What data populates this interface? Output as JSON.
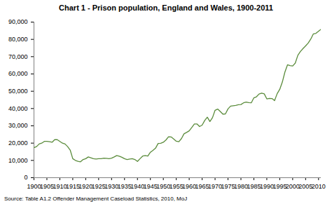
{
  "chart_data": {
    "type": "line",
    "title": "Chart 1 - Prison population, England and Wales, 1900-2011",
    "source": "Source: Table A1.2 Offender Management Caseload Statistics, 2010, MoJ",
    "color": "#5b8c3c",
    "grid": false,
    "x": [
      1900,
      1901,
      1902,
      1903,
      1904,
      1905,
      1906,
      1907,
      1908,
      1909,
      1910,
      1911,
      1912,
      1913,
      1914,
      1915,
      1916,
      1917,
      1918,
      1919,
      1920,
      1921,
      1922,
      1923,
      1924,
      1925,
      1926,
      1927,
      1928,
      1929,
      1930,
      1931,
      1932,
      1933,
      1934,
      1935,
      1936,
      1937,
      1938,
      1939,
      1940,
      1941,
      1942,
      1943,
      1944,
      1945,
      1946,
      1947,
      1948,
      1949,
      1950,
      1951,
      1952,
      1953,
      1954,
      1955,
      1956,
      1957,
      1958,
      1959,
      1960,
      1961,
      1962,
      1963,
      1964,
      1965,
      1966,
      1967,
      1968,
      1969,
      1970,
      1971,
      1972,
      1973,
      1974,
      1975,
      1976,
      1977,
      1978,
      1979,
      1980,
      1981,
      1982,
      1983,
      1984,
      1985,
      1986,
      1987,
      1988,
      1989,
      1990,
      1991,
      1992,
      1993,
      1994,
      1995,
      1996,
      1997,
      1998,
      1999,
      2000,
      2001,
      2002,
      2003,
      2004,
      2005,
      2006,
      2007,
      2008,
      2009,
      2010,
      2011
    ],
    "values": [
      17400,
      18000,
      19500,
      20000,
      21000,
      21000,
      20800,
      20500,
      22000,
      22000,
      21000,
      20000,
      19500,
      18000,
      16000,
      11000,
      10000,
      9500,
      9200,
      10500,
      11000,
      12000,
      11500,
      11000,
      10800,
      11000,
      11000,
      11300,
      11200,
      11000,
      11300,
      12000,
      12800,
      12400,
      11800,
      11000,
      10500,
      10800,
      11000,
      10500,
      9400,
      11000,
      12500,
      12800,
      12500,
      14700,
      15800,
      17100,
      19800,
      19900,
      20500,
      21800,
      23700,
      23600,
      22400,
      21100,
      20800,
      22600,
      25400,
      26200,
      27100,
      29000,
      31100,
      31100,
      29600,
      30400,
      33100,
      35000,
      32500,
      34700,
      39000,
      39700,
      38300,
      36800,
      36900,
      39800,
      41400,
      41600,
      41800,
      42200,
      42300,
      43300,
      43700,
      43400,
      43300,
      46200,
      46800,
      48400,
      48900,
      48500,
      45600,
      45900,
      45800,
      44600,
      48600,
      51100,
      55300,
      61100,
      65300,
      64800,
      64600,
      66300,
      70800,
      73000,
      74700,
      76200,
      77900,
      80200,
      83200,
      83500,
      84700,
      85900
    ],
    "xlim": [
      1900,
      2011
    ],
    "xticks": [
      1900,
      1905,
      1910,
      1915,
      1920,
      1925,
      1930,
      1935,
      1940,
      1945,
      1950,
      1955,
      1960,
      1965,
      1970,
      1975,
      1980,
      1985,
      1990,
      1995,
      2000,
      2005,
      2010
    ],
    "ylim": [
      0,
      90000
    ],
    "yticks": [
      0,
      {
        "value": 10000,
        "label": "10,000"
      },
      {
        "value": 20000,
        "label": "20,000"
      },
      {
        "value": 30000,
        "label": "30,000"
      },
      {
        "value": 40000,
        "label": "40,000"
      },
      {
        "value": 50000,
        "label": "50,000"
      },
      {
        "value": 60000,
        "label": "60,000"
      },
      {
        "value": 70000,
        "label": "70,000"
      },
      {
        "value": 80000,
        "label": "80,000"
      },
      {
        "value": 90000,
        "label": "90,000"
      }
    ]
  }
}
